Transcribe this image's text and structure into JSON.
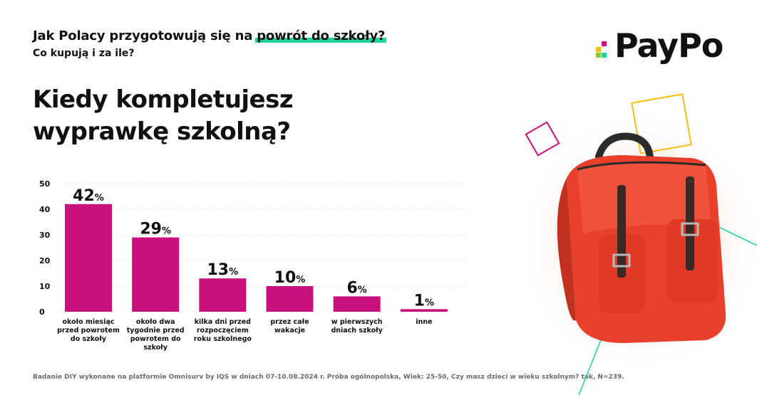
{
  "header": {
    "title_before": "Jak Polacy przygotowują się na ",
    "title_highlight": "powrót do szkoły?",
    "subtitle": "Co kupują i za ile?"
  },
  "logo": {
    "text": "PayPo"
  },
  "question": {
    "line1": "Kiedy kompletujesz",
    "line2": "wyprawkę szkolną?"
  },
  "colors": {
    "bar": "#c8117c",
    "accent": "#1fd19b",
    "yellow": "#f2c014",
    "backpack": "#e8402b"
  },
  "chart_data": {
    "type": "bar",
    "categories": [
      [
        "około miesiąc",
        "przed powrotem",
        "do szkoły"
      ],
      [
        "około dwa",
        "tygodnie przed",
        "powrotem do",
        "szkoły"
      ],
      [
        "kilka dni przed",
        "rozpoczęciem",
        "roku szkolnego"
      ],
      [
        "przez całe",
        "wakacje"
      ],
      [
        "w pierwszych",
        "dniach szkoły"
      ],
      [
        "inne"
      ]
    ],
    "values": [
      42,
      29,
      13,
      10,
      6,
      1
    ],
    "value_suffix": "%",
    "yticks": [
      0,
      10,
      20,
      30,
      40,
      50
    ],
    "ylim": [
      0,
      50
    ]
  },
  "footnote": "Badanie DIY wykonane na platformie Omnisurv by IQS w dniach 07-10.08.2024 r. Próba ogólnopolska, Wiek: 25-50, Czy masz dzieci w wieku szkolnym?  tak, N=239."
}
